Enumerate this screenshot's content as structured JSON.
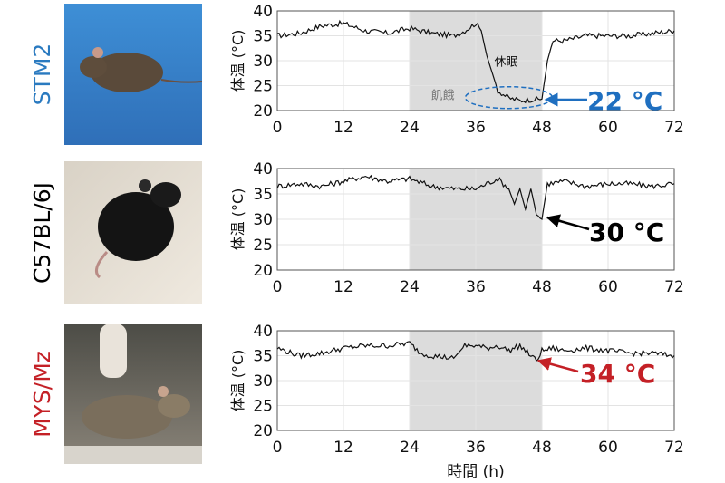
{
  "chart_data": [
    {
      "type": "line",
      "strain_label": "STM2",
      "strain_color": "#2a7ac0",
      "ylabel": "体温 (°C)",
      "xlabel": "",
      "ylim": [
        20,
        40
      ],
      "xlim": [
        0,
        72
      ],
      "yticks": [
        "20",
        "25",
        "30",
        "35",
        "40"
      ],
      "xticks": [
        "0",
        "12",
        "24",
        "36",
        "48",
        "60",
        "72"
      ],
      "shaded_region": [
        24,
        48
      ],
      "region_label": "飢餓",
      "annotation": "22 °C",
      "annotation_color": "#1f6fc0",
      "torpor_label": "休眠",
      "series": [
        {
          "x": [
            0,
            4,
            8,
            12,
            16,
            20,
            24,
            28,
            32,
            34,
            36,
            37,
            38,
            40,
            42,
            44,
            46,
            48,
            49,
            50,
            52,
            56,
            60,
            64,
            68,
            72
          ],
          "values": [
            35,
            35.5,
            37,
            37.5,
            36,
            35.5,
            36.5,
            35.5,
            35,
            36,
            37.5,
            36,
            31,
            24,
            22.5,
            22,
            22.2,
            22.3,
            30,
            34,
            34,
            35,
            35,
            35,
            35.5,
            36
          ]
        }
      ]
    },
    {
      "type": "line",
      "strain_label": "C57BL/6J",
      "strain_color": "#000000",
      "ylabel": "体温 (°C)",
      "xlabel": "",
      "ylim": [
        20,
        40
      ],
      "xlim": [
        0,
        72
      ],
      "yticks": [
        "20",
        "25",
        "30",
        "35",
        "40"
      ],
      "xticks": [
        "0",
        "12",
        "24",
        "36",
        "48",
        "60",
        "72"
      ],
      "shaded_region": [
        24,
        48
      ],
      "annotation": "30 °C",
      "annotation_color": "#000000",
      "series": [
        {
          "x": [
            0,
            4,
            8,
            12,
            16,
            20,
            24,
            28,
            32,
            36,
            40,
            42,
            43,
            44,
            45,
            46,
            47,
            48,
            49,
            52,
            56,
            60,
            64,
            68,
            72
          ],
          "values": [
            36.5,
            37,
            36.5,
            37.5,
            38.5,
            37.5,
            38,
            36.5,
            36,
            36,
            38,
            36,
            33,
            36,
            32,
            36,
            31,
            30,
            37,
            37.5,
            36.5,
            37,
            37,
            36.5,
            37
          ]
        }
      ]
    },
    {
      "type": "line",
      "strain_label": "MYS/Mz",
      "strain_color": "#c42026",
      "ylabel": "体温 (°C)",
      "xlabel": "時間 (h)",
      "ylim": [
        20,
        40
      ],
      "xlim": [
        0,
        72
      ],
      "yticks": [
        "20",
        "25",
        "30",
        "35",
        "40"
      ],
      "xticks": [
        "0",
        "12",
        "24",
        "36",
        "48",
        "60",
        "72"
      ],
      "shaded_region": [
        24,
        48
      ],
      "annotation": "34 °C",
      "annotation_color": "#c42026",
      "series": [
        {
          "x": [
            0,
            4,
            8,
            12,
            16,
            20,
            24,
            26,
            28,
            32,
            34,
            36,
            38,
            40,
            42,
            44,
            46,
            47,
            48,
            50,
            52,
            56,
            60,
            64,
            68,
            72
          ],
          "values": [
            36.5,
            35,
            35.5,
            36.5,
            37,
            37,
            37.5,
            35.5,
            35,
            34.5,
            37,
            37,
            36.5,
            37,
            36,
            37,
            35,
            34,
            36,
            36.5,
            36,
            36.5,
            36,
            35.5,
            35.5,
            35
          ]
        }
      ]
    }
  ]
}
